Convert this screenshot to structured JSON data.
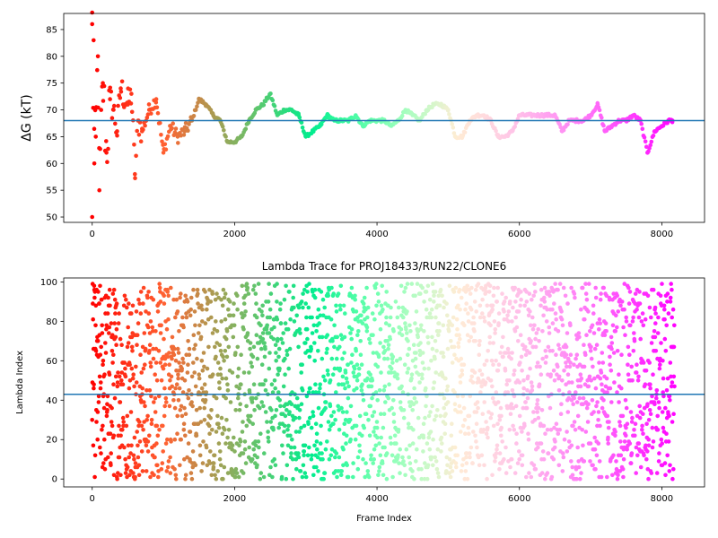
{
  "chart_data": [
    {
      "type": "scatter",
      "title": "",
      "xlabel": "",
      "ylabel": "ΔG (kT)",
      "xlim": [
        -400,
        8600
      ],
      "ylim": [
        49,
        88
      ],
      "xticks": [
        0,
        2000,
        4000,
        6000,
        8000
      ],
      "xtick_labels": [
        "0",
        "2000",
        "4000",
        "6000",
        "8000"
      ],
      "yticks": [
        50,
        55,
        60,
        65,
        70,
        75,
        80,
        85
      ],
      "ytick_labels": [
        "50",
        "55",
        "60",
        "65",
        "70",
        "75",
        "80",
        "85"
      ],
      "hline": 68.0,
      "hline_color": "#1f77b4",
      "colormap": "rainbow (red at frame 0 to violet at last frame)",
      "n_frames": 8200,
      "trace_points": [
        [
          0,
          86
        ],
        [
          0,
          50
        ],
        [
          20,
          83
        ],
        [
          30,
          60
        ],
        [
          50,
          65
        ],
        [
          80,
          80
        ],
        [
          100,
          55
        ],
        [
          150,
          75
        ],
        [
          200,
          62
        ],
        [
          250,
          72
        ],
        [
          300,
          70
        ],
        [
          350,
          66
        ],
        [
          400,
          74
        ],
        [
          500,
          71
        ],
        [
          550,
          73
        ],
        [
          600,
          58
        ],
        [
          650,
          68
        ],
        [
          700,
          66
        ],
        [
          800,
          70
        ],
        [
          900,
          72
        ],
        [
          1000,
          62
        ],
        [
          1100,
          67
        ],
        [
          1200,
          65
        ],
        [
          1300,
          66
        ],
        [
          1400,
          68
        ],
        [
          1500,
          72
        ],
        [
          1600,
          71
        ],
        [
          1700,
          69
        ],
        [
          1800,
          68
        ],
        [
          1900,
          64
        ],
        [
          2000,
          64
        ],
        [
          2100,
          65
        ],
        [
          2200,
          68
        ],
        [
          2300,
          70
        ],
        [
          2400,
          71
        ],
        [
          2500,
          73
        ],
        [
          2600,
          69
        ],
        [
          2700,
          70
        ],
        [
          2800,
          70
        ],
        [
          2900,
          69
        ],
        [
          3000,
          65
        ],
        [
          3100,
          66
        ],
        [
          3200,
          67
        ],
        [
          3300,
          69
        ],
        [
          3400,
          68
        ],
        [
          3500,
          68
        ],
        [
          3600,
          68
        ],
        [
          3700,
          69
        ],
        [
          3800,
          67
        ],
        [
          3900,
          68
        ],
        [
          4000,
          68
        ],
        [
          4100,
          68
        ],
        [
          4200,
          67
        ],
        [
          4300,
          68
        ],
        [
          4400,
          70
        ],
        [
          4500,
          69
        ],
        [
          4600,
          68
        ],
        [
          4700,
          70
        ],
        [
          4800,
          71
        ],
        [
          4900,
          71
        ],
        [
          5000,
          70
        ],
        [
          5100,
          65
        ],
        [
          5200,
          65
        ],
        [
          5300,
          68
        ],
        [
          5400,
          69
        ],
        [
          5500,
          69
        ],
        [
          5600,
          68
        ],
        [
          5700,
          65
        ],
        [
          5800,
          65
        ],
        [
          5900,
          66
        ],
        [
          6000,
          69
        ],
        [
          6100,
          69
        ],
        [
          6200,
          69
        ],
        [
          6300,
          69
        ],
        [
          6400,
          69
        ],
        [
          6500,
          69
        ],
        [
          6600,
          66
        ],
        [
          6700,
          68
        ],
        [
          6800,
          68
        ],
        [
          6900,
          68
        ],
        [
          7000,
          69
        ],
        [
          7100,
          71
        ],
        [
          7200,
          66
        ],
        [
          7300,
          67
        ],
        [
          7400,
          68
        ],
        [
          7500,
          68
        ],
        [
          7600,
          69
        ],
        [
          7700,
          68
        ],
        [
          7800,
          62
        ],
        [
          7900,
          66
        ],
        [
          8000,
          67
        ],
        [
          8100,
          68
        ],
        [
          8150,
          68
        ]
      ]
    },
    {
      "type": "scatter",
      "title": "Lambda Trace for PROJ18433/RUN22/CLONE6",
      "xlabel": "Frame Index",
      "ylabel": "Lambda Index",
      "xlim": [
        -400,
        8600
      ],
      "ylim": [
        -4,
        102
      ],
      "xticks": [
        0,
        2000,
        4000,
        6000,
        8000
      ],
      "xtick_labels": [
        "0",
        "2000",
        "4000",
        "6000",
        "8000"
      ],
      "yticks": [
        0,
        20,
        40,
        60,
        80,
        100
      ],
      "ytick_labels": [
        "0",
        "20",
        "40",
        "60",
        "80",
        "100"
      ],
      "hline": 43,
      "hline_color": "#1f77b4",
      "colormap": "rainbow (red at frame 0 to violet at last frame)",
      "n_frames": 8200,
      "lambda_range": [
        0,
        99
      ],
      "distribution": "uniform random lambda index 0-99 across all frames"
    }
  ]
}
